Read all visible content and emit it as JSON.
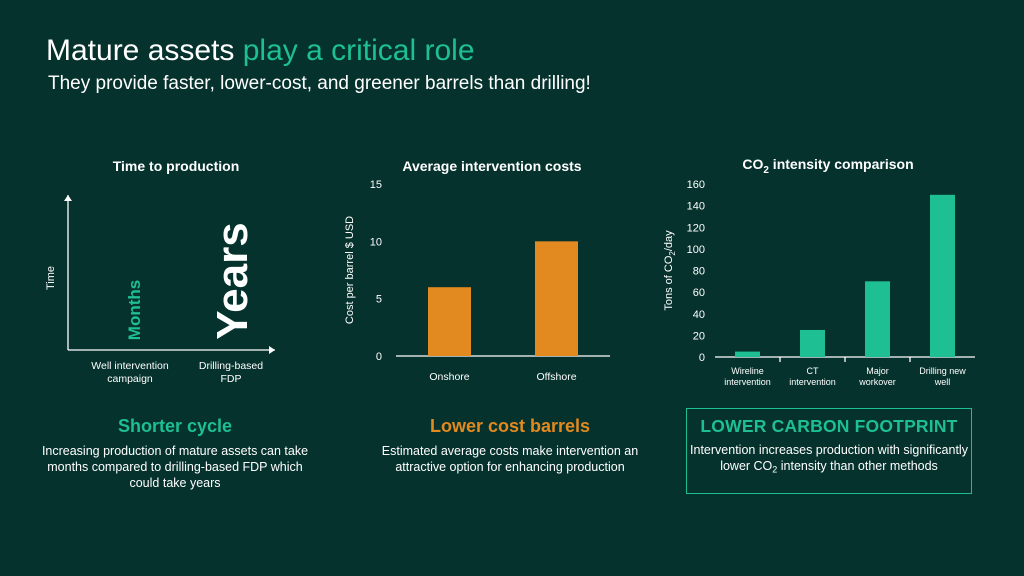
{
  "header": {
    "title_main": "Mature assets ",
    "title_accent": "play a critical role",
    "subtitle": "They provide faster, lower-cost, and greener barrels than drilling!"
  },
  "colors": {
    "background": "#05322d",
    "green": "#1dbf93",
    "orange": "#e2891f",
    "text": "#ffffff"
  },
  "chart_data": [
    {
      "type": "diagram",
      "title": "Time to production",
      "ylabel": "Time",
      "categories": [
        "Well intervention campaign",
        "Drilling-based FDP"
      ],
      "category_lines": [
        [
          "Well intervention",
          "campaign"
        ],
        [
          "Drilling-based",
          "FDP"
        ]
      ],
      "labels": [
        "Months",
        "Years"
      ],
      "label_colors": [
        "#1dbf93",
        "#ffffff"
      ]
    },
    {
      "type": "bar",
      "title": "Average intervention costs",
      "ylabel": "Cost per barrel $ USD",
      "categories": [
        "Onshore",
        "Offshore"
      ],
      "values": [
        6,
        10
      ],
      "ylim": [
        0,
        15
      ],
      "yticks": [
        0,
        5,
        10,
        15
      ],
      "bar_color": "#e2891f",
      "grid": false
    },
    {
      "type": "bar",
      "title_pre": "CO",
      "title_sub": "2",
      "title_post": " intensity comparison",
      "ylabel_pre": "Tons of CO",
      "ylabel_sub": "2",
      "ylabel_post": "/day",
      "categories": [
        "Wireline intervention",
        "CT intervention",
        "Major workover",
        "Drilling new well"
      ],
      "category_lines": [
        [
          "Wireline",
          "intervention"
        ],
        [
          "CT",
          "intervention"
        ],
        [
          "Major",
          "workover"
        ],
        [
          "Drilling new",
          "well"
        ]
      ],
      "values": [
        5,
        25,
        70,
        150
      ],
      "ylim": [
        0,
        160
      ],
      "yticks": [
        0,
        20,
        40,
        60,
        80,
        100,
        120,
        140,
        160
      ],
      "bar_color": "#1dbf93",
      "grid": false
    }
  ],
  "panels": {
    "cycle": {
      "heading": "Shorter cycle",
      "text": "Increasing production of mature assets can take months compared to drilling-based FDP which could take years"
    },
    "cost": {
      "heading": "Lower cost barrels",
      "text": "Estimated average costs make intervention an attractive option for enhancing production"
    },
    "carbon": {
      "heading": "LOWER CARBON FOOTPRINT",
      "text_pre": "Intervention increases production with significantly lower CO",
      "text_sub": "2",
      "text_post": " intensity than other methods"
    }
  }
}
